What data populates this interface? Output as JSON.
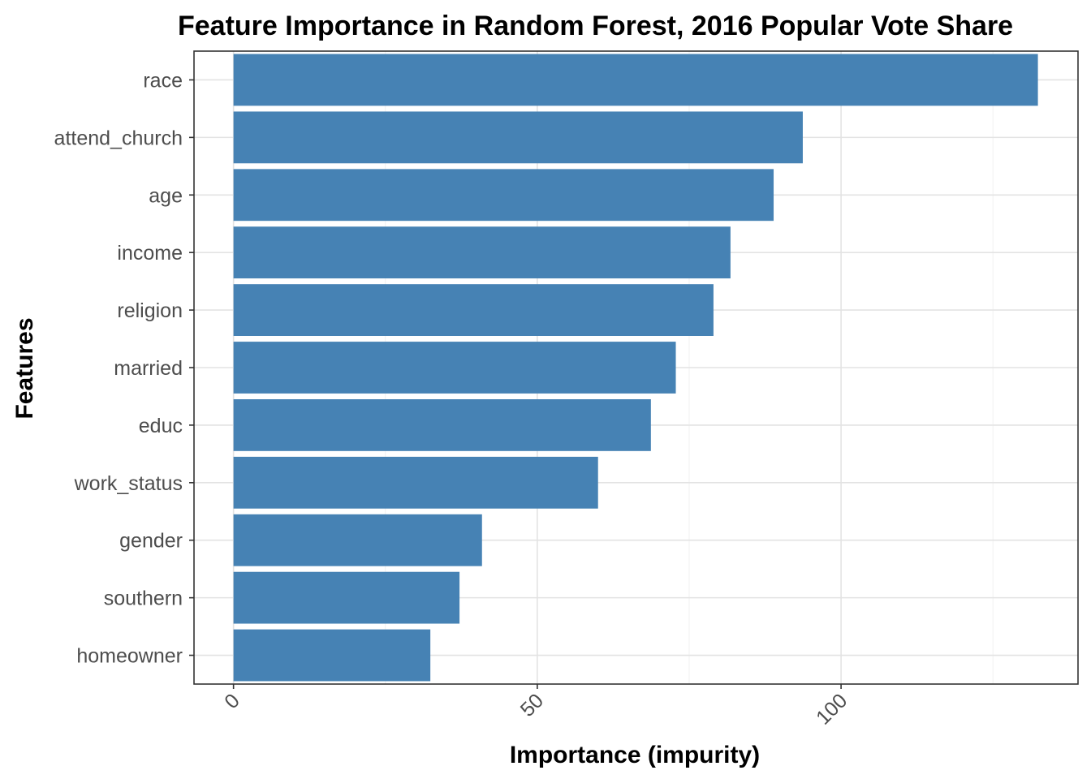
{
  "chart_data": {
    "type": "bar",
    "orientation": "horizontal",
    "title": "Feature Importance in Random Forest, 2016 Popular Vote Share",
    "xlabel": "Importance (impurity)",
    "ylabel": "Features",
    "categories": [
      "race",
      "attend_church",
      "age",
      "income",
      "religion",
      "married",
      "educ",
      "work_status",
      "gender",
      "southern",
      "homeowner"
    ],
    "values": [
      132.4,
      93.7,
      88.9,
      81.8,
      79.0,
      72.8,
      68.7,
      60.0,
      40.9,
      37.2,
      32.4
    ],
    "xlim": [
      -6.5,
      139
    ],
    "x_ticks": [
      "0",
      "50",
      "100"
    ],
    "x_tick_values": [
      0,
      50,
      100
    ],
    "x_minor_grid": [
      25,
      75,
      125
    ],
    "bar_color": "#4682B4",
    "grid": true,
    "tick_label_rotation": "45deg"
  }
}
